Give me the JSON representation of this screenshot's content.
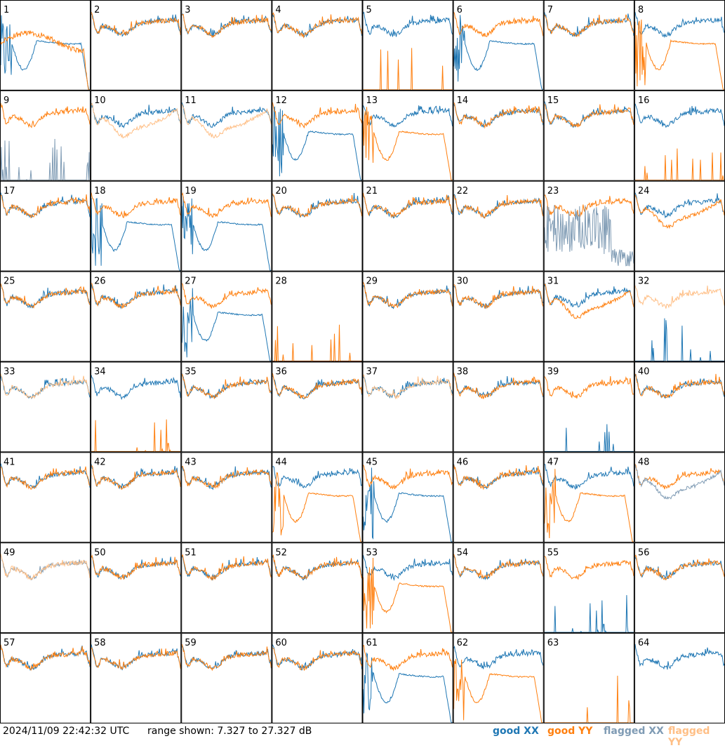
{
  "chart_data": {
    "type": "line",
    "panel_labels": [
      "1",
      "2",
      "3",
      "4",
      "5",
      "6",
      "7",
      "8",
      "9",
      "10",
      "11",
      "12",
      "13",
      "14",
      "15",
      "16",
      "17",
      "18",
      "19",
      "20",
      "21",
      "22",
      "23",
      "24",
      "25",
      "26",
      "27",
      "28",
      "29",
      "30",
      "31",
      "32",
      "33",
      "34",
      "35",
      "36",
      "37",
      "38",
      "39",
      "40",
      "41",
      "42",
      "43",
      "44",
      "45",
      "46",
      "47",
      "48",
      "49",
      "50",
      "51",
      "52",
      "53",
      "54",
      "55",
      "56",
      "57",
      "58",
      "59",
      "60",
      "61",
      "62",
      "63",
      "64"
    ],
    "y_range_db": [
      7.327,
      27.327
    ],
    "series": [
      {
        "name": "good XX",
        "color": "#1f77b4"
      },
      {
        "name": "good YY",
        "color": "#ff7f0e"
      },
      {
        "name": "flagged XX",
        "color": "#7f9bb4"
      },
      {
        "name": "flagged YY",
        "color": "#ffbf86"
      }
    ],
    "panel_modes": [
      [
        "dip",
        "nearly"
      ],
      [
        "ok",
        "ok"
      ],
      [
        "ok",
        "ok"
      ],
      [
        "ok",
        "ok"
      ],
      [
        "ok",
        "spike"
      ],
      [
        "dip",
        "ok"
      ],
      [
        "ok",
        "ok"
      ],
      [
        "ok",
        "dip"
      ],
      [
        "spike",
        "ok"
      ],
      [
        "ok",
        "low"
      ],
      [
        "ok",
        "low"
      ],
      [
        "dip",
        "ok"
      ],
      [
        "ok",
        "dip"
      ],
      [
        "ok",
        "ok"
      ],
      [
        "ok",
        "ok"
      ],
      [
        "ok",
        "spike"
      ],
      [
        "ok",
        "ok"
      ],
      [
        "dip",
        "ok"
      ],
      [
        "dip",
        "ok"
      ],
      [
        "ok",
        "ok"
      ],
      [
        "ok",
        "ok"
      ],
      [
        "ok",
        "ok"
      ],
      [
        "noisy",
        "ok"
      ],
      [
        "ok",
        "low"
      ],
      [
        "ok",
        "ok"
      ],
      [
        "ok",
        "ok"
      ],
      [
        "dip",
        "ok"
      ],
      [
        "none",
        "spike"
      ],
      [
        "ok",
        "ok"
      ],
      [
        "ok",
        "ok"
      ],
      [
        "ok",
        "low"
      ],
      [
        "spike",
        "ok"
      ],
      [
        "ok",
        "ok"
      ],
      [
        "ok",
        "spike"
      ],
      [
        "ok",
        "ok"
      ],
      [
        "ok",
        "ok"
      ],
      [
        "ok",
        "ok"
      ],
      [
        "ok",
        "ok"
      ],
      [
        "spike",
        "ok"
      ],
      [
        "ok",
        "ok"
      ],
      [
        "ok",
        "ok"
      ],
      [
        "ok",
        "ok"
      ],
      [
        "ok",
        "ok"
      ],
      [
        "ok",
        "dip"
      ],
      [
        "dip",
        "ok"
      ],
      [
        "ok",
        "ok"
      ],
      [
        "ok",
        "dip"
      ],
      [
        "low",
        "ok"
      ],
      [
        "ok",
        "ok"
      ],
      [
        "ok",
        "ok"
      ],
      [
        "ok",
        "ok"
      ],
      [
        "ok",
        "ok"
      ],
      [
        "ok",
        "dip"
      ],
      [
        "ok",
        "ok"
      ],
      [
        "spike",
        "ok"
      ],
      [
        "ok",
        "ok"
      ],
      [
        "ok",
        "ok"
      ],
      [
        "ok",
        "ok"
      ],
      [
        "ok",
        "ok"
      ],
      [
        "ok",
        "ok"
      ],
      [
        "dip",
        "ok"
      ],
      [
        "ok",
        "dip"
      ],
      [
        "none",
        "spike"
      ],
      [
        "ok",
        "none"
      ]
    ],
    "flagged_panels": {
      "xx": [
        9,
        23,
        48,
        49
      ],
      "yy": [
        10,
        11,
        32,
        33,
        37,
        49
      ]
    }
  },
  "footer": {
    "timestamp": "2024/11/09 22:42:32 UTC",
    "range_text": "range shown: 7.327 to 27.327 dB",
    "legend_good_xx": "good XX",
    "legend_good_yy": "good YY",
    "legend_flagged_xx": "flagged XX",
    "legend_flagged_yy": "flagged YY"
  }
}
